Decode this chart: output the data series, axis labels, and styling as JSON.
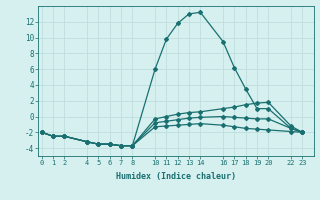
{
  "xlabel": "Humidex (Indice chaleur)",
  "background_color": "#d6f0f0",
  "grid_color": "#c0dede",
  "line_color": "#1a7070",
  "x_ticks": [
    0,
    1,
    2,
    4,
    5,
    6,
    7,
    8,
    10,
    11,
    12,
    13,
    14,
    16,
    17,
    18,
    19,
    20,
    22,
    23
  ],
  "series": [
    {
      "x": [
        0,
        1,
        2,
        4,
        5,
        6,
        7,
        8,
        10,
        11,
        12,
        13,
        14,
        16,
        17,
        18,
        19,
        20,
        22,
        23
      ],
      "y": [
        -2.0,
        -2.5,
        -2.5,
        -3.2,
        -3.5,
        -3.5,
        -3.7,
        -3.7,
        6.0,
        9.8,
        11.8,
        13.0,
        13.2,
        9.5,
        6.2,
        3.5,
        1.0,
        1.0,
        -1.5,
        -2.0
      ]
    },
    {
      "x": [
        0,
        1,
        2,
        4,
        5,
        6,
        7,
        8,
        10,
        11,
        12,
        13,
        14,
        16,
        17,
        18,
        19,
        20,
        22,
        23
      ],
      "y": [
        -2.0,
        -2.5,
        -2.5,
        -3.2,
        -3.5,
        -3.5,
        -3.7,
        -3.7,
        -0.3,
        0.0,
        0.3,
        0.5,
        0.6,
        1.0,
        1.2,
        1.5,
        1.7,
        1.8,
        -1.2,
        -2.0
      ]
    },
    {
      "x": [
        0,
        1,
        2,
        4,
        5,
        6,
        7,
        8,
        10,
        11,
        12,
        13,
        14,
        16,
        17,
        18,
        19,
        20,
        22,
        23
      ],
      "y": [
        -2.0,
        -2.5,
        -2.5,
        -3.2,
        -3.5,
        -3.5,
        -3.7,
        -3.7,
        -0.8,
        -0.6,
        -0.4,
        -0.2,
        -0.1,
        0.0,
        -0.1,
        -0.2,
        -0.3,
        -0.3,
        -1.5,
        -2.0
      ]
    },
    {
      "x": [
        0,
        1,
        2,
        4,
        5,
        6,
        7,
        8,
        10,
        11,
        12,
        13,
        14,
        16,
        17,
        18,
        19,
        20,
        22,
        23
      ],
      "y": [
        -2.0,
        -2.5,
        -2.5,
        -3.2,
        -3.5,
        -3.5,
        -3.7,
        -3.7,
        -1.3,
        -1.2,
        -1.1,
        -1.0,
        -0.9,
        -1.1,
        -1.3,
        -1.5,
        -1.6,
        -1.7,
        -1.9,
        -2.0
      ]
    }
  ],
  "ylim": [
    -5,
    14
  ],
  "xlim": [
    -0.3,
    24.0
  ],
  "yticks": [
    -4,
    -2,
    0,
    2,
    4,
    6,
    8,
    10,
    12
  ]
}
